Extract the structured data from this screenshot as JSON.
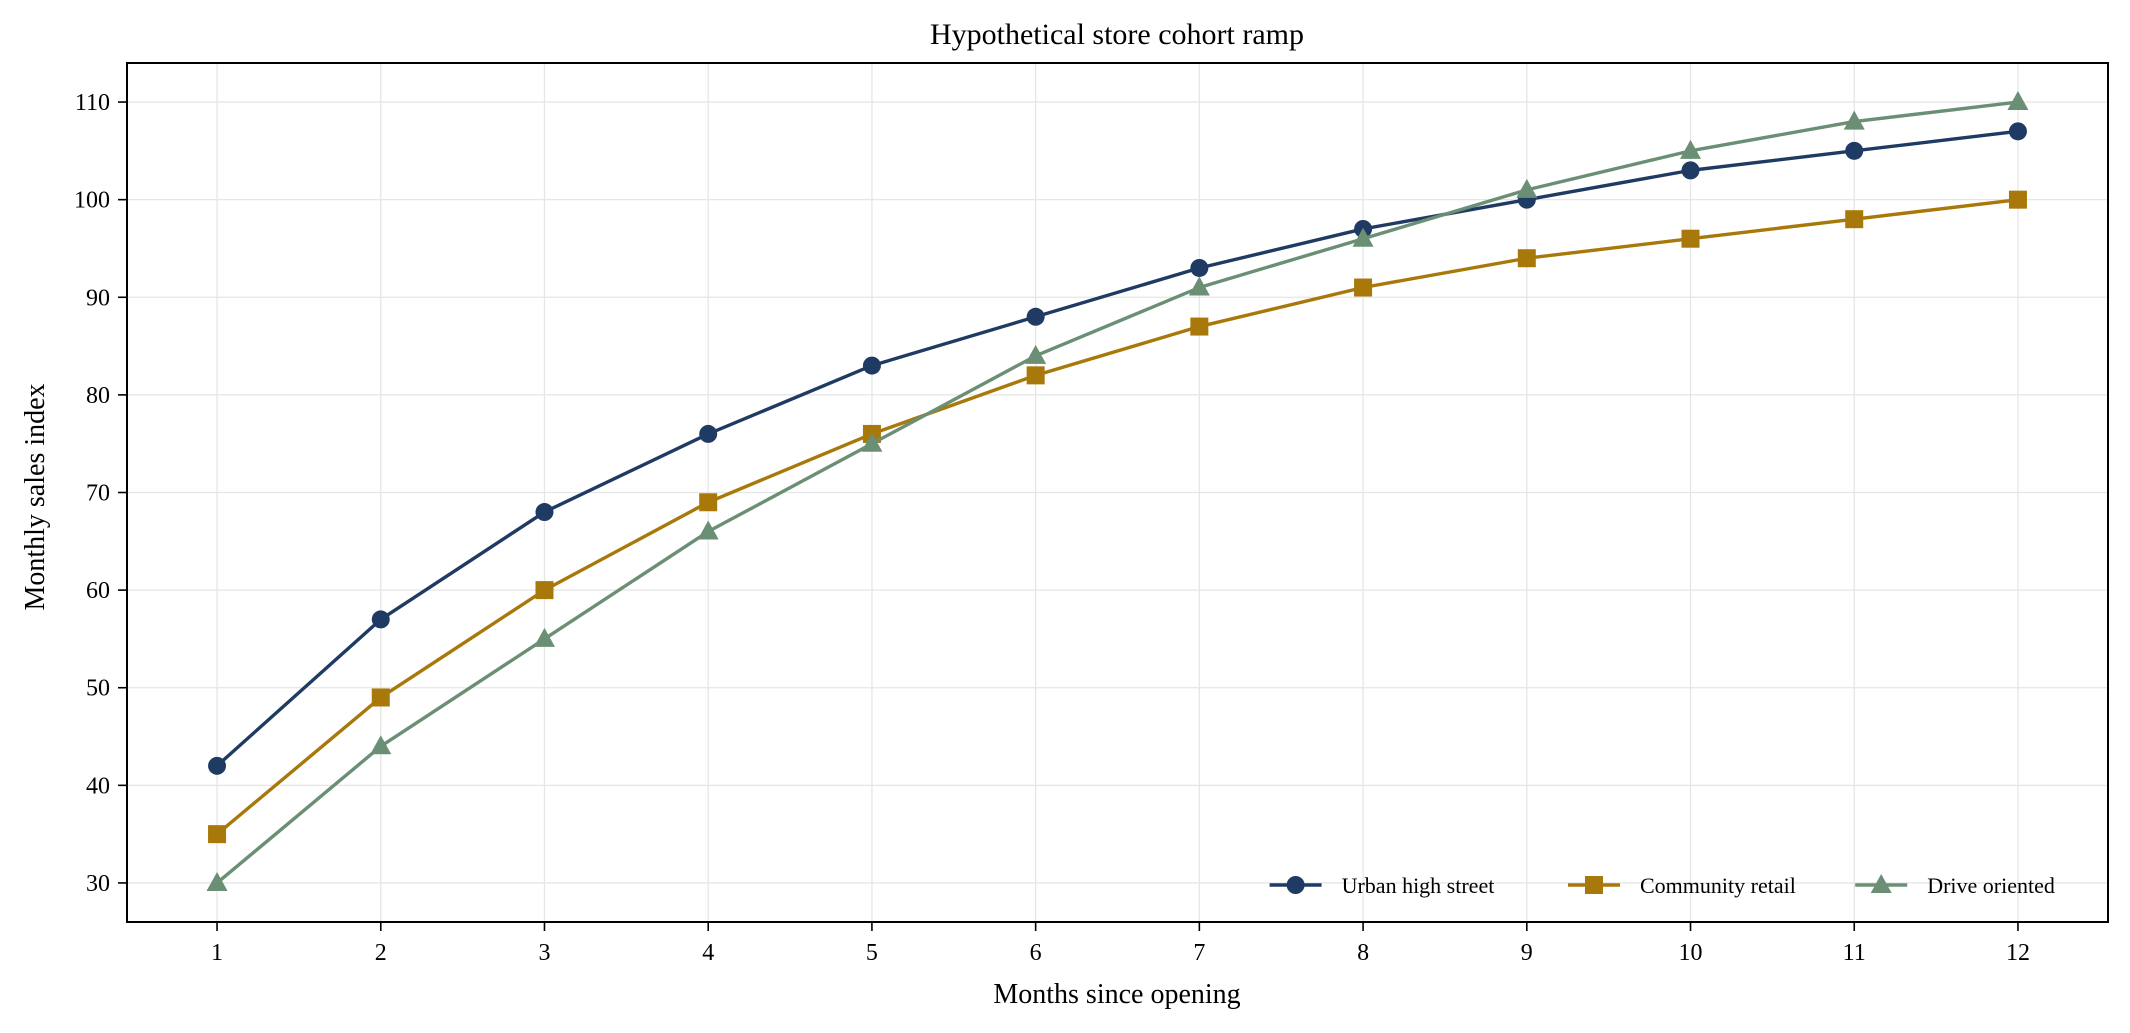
{
  "chart_data": {
    "type": "line",
    "title": "Hypothetical store cohort ramp",
    "xlabel": "Months since opening",
    "ylabel": "Monthly sales index",
    "x": [
      1,
      2,
      3,
      4,
      5,
      6,
      7,
      8,
      9,
      10,
      11,
      12
    ],
    "xlim": [
      0.45,
      12.55
    ],
    "ylim": [
      26,
      114
    ],
    "yticks": [
      30,
      40,
      50,
      60,
      70,
      80,
      90,
      100,
      110
    ],
    "grid": true,
    "legend_position": "lower-right",
    "series": [
      {
        "name": "Urban high street",
        "color": "#1f3b63",
        "marker": "circle",
        "values": [
          42,
          57,
          68,
          76,
          83,
          88,
          93,
          97,
          100,
          103,
          105,
          107
        ]
      },
      {
        "name": "Community retail",
        "color": "#a8780a",
        "marker": "square",
        "values": [
          35,
          49,
          60,
          69,
          76,
          82,
          87,
          91,
          94,
          96,
          98,
          100
        ]
      },
      {
        "name": "Drive oriented",
        "color": "#6b8f75",
        "marker": "triangle",
        "values": [
          30,
          44,
          55,
          66,
          75,
          84,
          91,
          96,
          101,
          105,
          108,
          110
        ]
      }
    ]
  }
}
